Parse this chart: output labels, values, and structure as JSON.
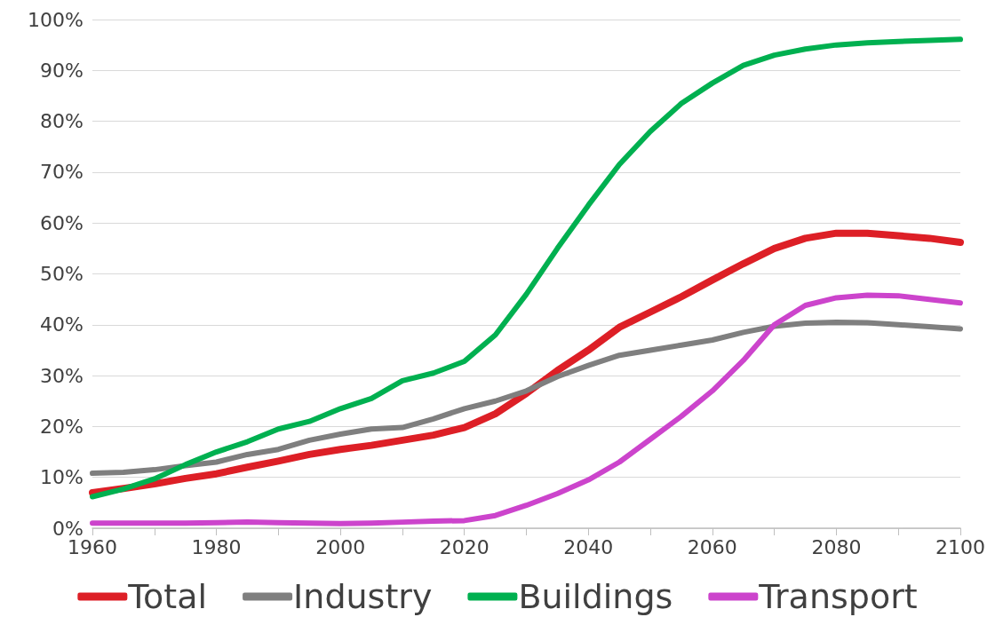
{
  "chart_data": {
    "type": "line",
    "x": [
      1960,
      1965,
      1970,
      1975,
      1980,
      1985,
      1990,
      1995,
      2000,
      2005,
      2010,
      2015,
      2020,
      2025,
      2030,
      2035,
      2040,
      2045,
      2050,
      2055,
      2060,
      2065,
      2070,
      2075,
      2080,
      2085,
      2090,
      2095,
      2100
    ],
    "series": [
      {
        "name": "Total",
        "color": "#dd1f26",
        "values": [
          7,
          7.8,
          8.7,
          9.8,
          10.7,
          12,
          13.2,
          14.5,
          15.5,
          16.3,
          17.3,
          18.3,
          19.8,
          22.5,
          26.5,
          31,
          35,
          39.5,
          42.5,
          45.5,
          48.8,
          52,
          55,
          57,
          58,
          58,
          57.5,
          57,
          56.2
        ]
      },
      {
        "name": "Industry",
        "color": "#7f7f7f",
        "values": [
          10.8,
          11,
          11.5,
          12.3,
          13,
          14.5,
          15.5,
          17.3,
          18.5,
          19.5,
          19.8,
          21.5,
          23.5,
          25,
          27,
          29.8,
          32,
          34,
          35,
          36,
          37,
          38.5,
          39.7,
          40.3,
          40.5,
          40.4,
          40,
          39.6,
          39.2
        ]
      },
      {
        "name": "Buildings",
        "color": "#00b050",
        "values": [
          6.2,
          7.7,
          9.7,
          12.5,
          15,
          17,
          19.5,
          21,
          23.5,
          25.5,
          29,
          30.5,
          32.8,
          38,
          46,
          55,
          63.5,
          71.5,
          78,
          83.5,
          87.5,
          91,
          93,
          94.2,
          95,
          95.4,
          95.7,
          95.9,
          96.1
        ]
      },
      {
        "name": "Transport",
        "color": "#cc44cc",
        "values": [
          1,
          1,
          1,
          1,
          1.1,
          1.2,
          1.1,
          1,
          0.9,
          1,
          1.2,
          1.4,
          1.5,
          2.5,
          4.5,
          6.8,
          9.5,
          13,
          17.5,
          22,
          27,
          33,
          40,
          43.8,
          45.3,
          45.8,
          45.7,
          45,
          44.3
        ]
      }
    ],
    "xlim": [
      1960,
      2100
    ],
    "xticks": [
      1960,
      {
        "value": 1970,
        "label": null
      },
      1980,
      {
        "value": 1990,
        "label": null
      },
      2000,
      {
        "value": 2010,
        "label": null
      },
      2020,
      {
        "value": 2030,
        "label": null
      },
      2040,
      {
        "value": 2050,
        "label": null
      },
      2060,
      {
        "value": 2070,
        "label": null
      },
      2080,
      {
        "value": 2090,
        "label": null
      },
      2100
    ],
    "ylim": [
      0,
      100
    ],
    "yticks": [
      {
        "value": 0,
        "label": "0%"
      },
      {
        "value": 10,
        "label": "10%"
      },
      {
        "value": 20,
        "label": "20%"
      },
      {
        "value": 30,
        "label": "30%"
      },
      {
        "value": 40,
        "label": "40%"
      },
      {
        "value": 50,
        "label": "50%"
      },
      {
        "value": 60,
        "label": "60%"
      },
      {
        "value": 70,
        "label": "70%"
      },
      {
        "value": 80,
        "label": "80%"
      },
      {
        "value": 90,
        "label": "90%"
      },
      {
        "value": 100,
        "label": "100%"
      }
    ],
    "grid": "y",
    "legend": "bottom",
    "marker": "none",
    "line_style": "solid"
  }
}
